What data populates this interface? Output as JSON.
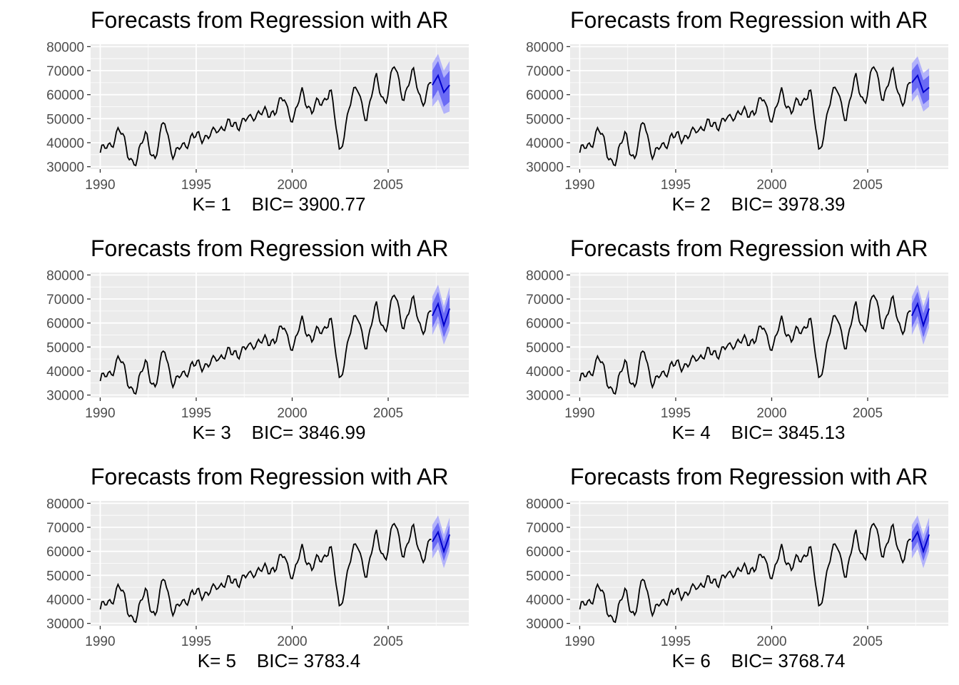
{
  "chart_data": [
    {
      "type": "line",
      "title": "Forecasts from Regression with AR",
      "caption_k": "K= 1",
      "caption_bic": "BIC= 3900.77",
      "ylim": [
        29000,
        81000
      ],
      "xlim": [
        1989.5,
        2009.2
      ],
      "yticks": [
        "30000",
        "40000",
        "50000",
        "60000",
        "70000",
        "80000"
      ],
      "xticks": [
        "1990",
        "1995",
        "2000",
        "2005"
      ],
      "series": [
        {
          "values": [
            34000,
            40000,
            45000,
            36000,
            32000,
            44000,
            33000,
            49000,
            35000,
            37000,
            45000,
            39000,
            47000,
            42000,
            52000,
            43000,
            54000,
            48000,
            56000,
            50000,
            61000,
            47000,
            63000,
            52000,
            57000,
            63000,
            35000,
            55000,
            62000,
            51000,
            66000,
            58000,
            71000,
            60000,
            68000,
            58000,
            64000
          ]
        }
      ],
      "forecast": {
        "x": [
          2007.3,
          2007.6,
          2007.9,
          2008.2
        ],
        "mean": [
          64000,
          68000,
          61000,
          64000
        ],
        "lo80": [
          58000,
          62000,
          55000,
          57000
        ],
        "hi80": [
          70000,
          74000,
          67000,
          70000
        ],
        "lo95": [
          55000,
          58000,
          52000,
          53000
        ],
        "hi95": [
          73000,
          77000,
          70000,
          74000
        ]
      },
      "grid": true
    },
    {
      "type": "line",
      "title": "Forecasts from Regression with AR",
      "caption_k": "K= 2",
      "caption_bic": "BIC= 3978.39",
      "ylim": [
        29000,
        81000
      ],
      "xlim": [
        1989.5,
        2009.2
      ],
      "yticks": [
        "30000",
        "40000",
        "50000",
        "60000",
        "70000",
        "80000"
      ],
      "xticks": [
        "1990",
        "1995",
        "2000",
        "2005"
      ],
      "series": [
        {
          "values": [
            34000,
            40000,
            45000,
            36000,
            32000,
            44000,
            33000,
            49000,
            35000,
            37000,
            45000,
            39000,
            47000,
            42000,
            52000,
            43000,
            54000,
            48000,
            56000,
            50000,
            61000,
            47000,
            63000,
            52000,
            57000,
            63000,
            35000,
            55000,
            62000,
            51000,
            66000,
            58000,
            71000,
            60000,
            68000,
            58000,
            64000
          ]
        }
      ],
      "forecast": {
        "x": [
          2007.3,
          2007.6,
          2007.9,
          2008.2
        ],
        "mean": [
          65000,
          68000,
          61000,
          63000
        ],
        "lo80": [
          60000,
          63000,
          56000,
          58000
        ],
        "hi80": [
          70000,
          73000,
          66000,
          68000
        ],
        "lo95": [
          57000,
          60000,
          53000,
          55000
        ],
        "hi95": [
          73000,
          76000,
          69000,
          71000
        ]
      },
      "grid": true
    },
    {
      "type": "line",
      "title": "Forecasts from Regression with AR",
      "caption_k": "K= 3",
      "caption_bic": "BIC= 3846.99",
      "ylim": [
        29000,
        81000
      ],
      "xlim": [
        1989.5,
        2009.2
      ],
      "yticks": [
        "30000",
        "40000",
        "50000",
        "60000",
        "70000",
        "80000"
      ],
      "xticks": [
        "1990",
        "1995",
        "2000",
        "2005"
      ],
      "series": [
        {
          "values": [
            34000,
            40000,
            45000,
            36000,
            32000,
            44000,
            33000,
            49000,
            35000,
            37000,
            45000,
            39000,
            47000,
            42000,
            52000,
            43000,
            54000,
            48000,
            56000,
            50000,
            61000,
            47000,
            63000,
            52000,
            57000,
            63000,
            35000,
            55000,
            62000,
            51000,
            66000,
            58000,
            71000,
            60000,
            68000,
            58000,
            64000
          ]
        }
      ],
      "forecast": {
        "x": [
          2007.3,
          2007.6,
          2007.9,
          2008.2
        ],
        "mean": [
          63000,
          68000,
          59000,
          66000
        ],
        "lo80": [
          58000,
          63000,
          54000,
          60000
        ],
        "hi80": [
          68000,
          73000,
          64000,
          72000
        ],
        "lo95": [
          55000,
          60000,
          51000,
          57000
        ],
        "hi95": [
          71000,
          76000,
          67000,
          75000
        ]
      },
      "grid": true
    },
    {
      "type": "line",
      "title": "Forecasts from Regression with AR",
      "caption_k": "K= 4",
      "caption_bic": "BIC= 3845.13",
      "ylim": [
        29000,
        81000
      ],
      "xlim": [
        1989.5,
        2009.2
      ],
      "yticks": [
        "30000",
        "40000",
        "50000",
        "60000",
        "70000",
        "80000"
      ],
      "xticks": [
        "1990",
        "1995",
        "2000",
        "2005"
      ],
      "series": [
        {
          "values": [
            34000,
            40000,
            45000,
            36000,
            32000,
            44000,
            33000,
            49000,
            35000,
            37000,
            45000,
            39000,
            47000,
            42000,
            52000,
            43000,
            54000,
            48000,
            56000,
            50000,
            61000,
            47000,
            63000,
            52000,
            57000,
            63000,
            35000,
            55000,
            62000,
            51000,
            66000,
            58000,
            71000,
            60000,
            68000,
            58000,
            64000
          ]
        }
      ],
      "forecast": {
        "x": [
          2007.3,
          2007.6,
          2007.9,
          2008.2
        ],
        "mean": [
          63000,
          68000,
          59000,
          66000
        ],
        "lo80": [
          58000,
          63000,
          54000,
          61000
        ],
        "hi80": [
          68000,
          73000,
          64000,
          71000
        ],
        "lo95": [
          55000,
          60000,
          51000,
          58000
        ],
        "hi95": [
          71000,
          76000,
          67000,
          74000
        ]
      },
      "grid": true
    },
    {
      "type": "line",
      "title": "Forecasts from Regression with AR",
      "caption_k": "K= 5",
      "caption_bic": "BIC= 3783.4",
      "ylim": [
        29000,
        81000
      ],
      "xlim": [
        1989.5,
        2009.2
      ],
      "yticks": [
        "30000",
        "40000",
        "50000",
        "60000",
        "70000",
        "80000"
      ],
      "xticks": [
        "1990",
        "1995",
        "2000",
        "2005"
      ],
      "series": [
        {
          "values": [
            34000,
            40000,
            45000,
            36000,
            32000,
            44000,
            33000,
            49000,
            35000,
            37000,
            45000,
            39000,
            47000,
            42000,
            52000,
            43000,
            54000,
            48000,
            56000,
            50000,
            61000,
            47000,
            63000,
            52000,
            57000,
            63000,
            35000,
            55000,
            62000,
            51000,
            66000,
            58000,
            71000,
            60000,
            68000,
            58000,
            64000
          ]
        }
      ],
      "forecast": {
        "x": [
          2007.3,
          2007.6,
          2007.9,
          2008.2
        ],
        "mean": [
          64000,
          68000,
          60000,
          67000
        ],
        "lo80": [
          60000,
          64000,
          56000,
          63000
        ],
        "hi80": [
          68000,
          72000,
          64000,
          71000
        ],
        "lo95": [
          57000,
          61000,
          53000,
          60000
        ],
        "hi95": [
          71000,
          75000,
          67000,
          74000
        ]
      },
      "grid": true
    },
    {
      "type": "line",
      "title": "Forecasts from Regression with AR",
      "caption_k": "K= 6",
      "caption_bic": "BIC= 3768.74",
      "ylim": [
        29000,
        81000
      ],
      "xlim": [
        1989.5,
        2009.2
      ],
      "yticks": [
        "30000",
        "40000",
        "50000",
        "60000",
        "70000",
        "80000"
      ],
      "xticks": [
        "1990",
        "1995",
        "2000",
        "2005"
      ],
      "series": [
        {
          "values": [
            34000,
            40000,
            45000,
            36000,
            32000,
            44000,
            33000,
            49000,
            35000,
            37000,
            45000,
            39000,
            47000,
            42000,
            52000,
            43000,
            54000,
            48000,
            56000,
            50000,
            61000,
            47000,
            63000,
            52000,
            57000,
            63000,
            35000,
            55000,
            62000,
            51000,
            66000,
            58000,
            71000,
            60000,
            68000,
            58000,
            64000
          ]
        }
      ],
      "forecast": {
        "x": [
          2007.3,
          2007.6,
          2007.9,
          2008.2
        ],
        "mean": [
          64000,
          68000,
          60000,
          67000
        ],
        "lo80": [
          60000,
          64000,
          56000,
          63000
        ],
        "hi80": [
          68000,
          72000,
          64000,
          71000
        ],
        "lo95": [
          57000,
          61000,
          53000,
          60000
        ],
        "hi95": [
          71000,
          75000,
          67000,
          74000
        ]
      },
      "grid": true
    }
  ],
  "colors": {
    "panel_bg": "#ebebeb",
    "grid": "#ffffff",
    "history_line": "#000000",
    "forecast_line": "#0000cc",
    "band_80": "#6b6bf5",
    "band_95": "#b3b3fa"
  }
}
